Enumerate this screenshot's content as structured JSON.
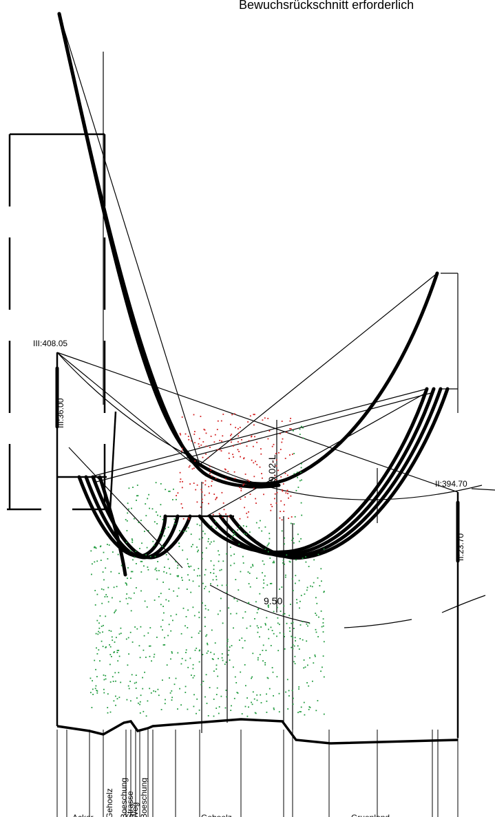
{
  "header": {
    "title": "Bewuchsrückschnitt erforderlich"
  },
  "labels": {
    "tower_left_height": "III:408.05",
    "tower_left_size": "III:36.00",
    "tower_right_height": "II:394.70",
    "tower_right_size": "II:23.70",
    "clearance_1": "9.02-L",
    "clearance_2": "9.50"
  },
  "land_use": [
    "Acker",
    "Gehoelz",
    "Boeschung",
    "Strasse",
    "Weg",
    "Boeschung",
    "Gehoelz",
    "Gruenland"
  ]
}
